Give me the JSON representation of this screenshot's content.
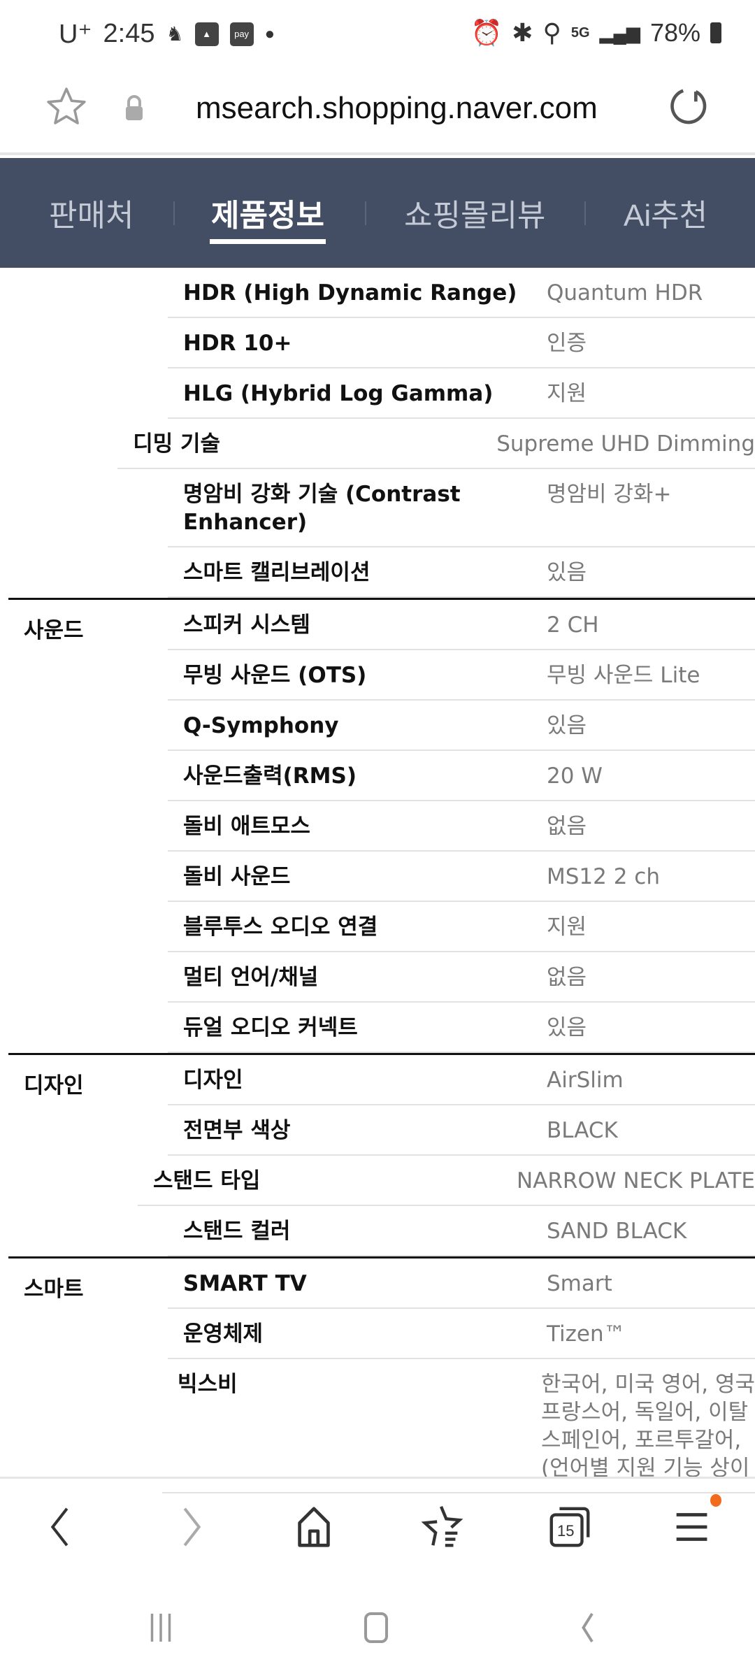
{
  "status_bar": {
    "carrier": "U⁺",
    "time": "2:45",
    "pay_icon_label": "pay",
    "battery": "78%",
    "network": "5G"
  },
  "browser": {
    "url": "msearch.shopping.naver.com"
  },
  "tabs": [
    {
      "label": "판매처"
    },
    {
      "label": "제품정보",
      "active": true
    },
    {
      "label": "쇼핑몰리뷰"
    },
    {
      "label": "Ai추천"
    }
  ],
  "specs": [
    {
      "category": "",
      "rows": [
        {
          "label": "HDR (High Dynamic Range)",
          "value": "Quantum HDR"
        },
        {
          "label": "HDR 10+",
          "value": "인증"
        },
        {
          "label": "HLG (Hybrid Log Gamma)",
          "value": "지원"
        },
        {
          "label": "디밍 기술",
          "value": "Supreme UHD Dimming"
        },
        {
          "label": "명암비 강화 기술 (Contrast Enhancer)",
          "value": "명암비 강화+"
        },
        {
          "label": "스마트 캘리브레이션",
          "value": "있음"
        }
      ]
    },
    {
      "category": "사운드",
      "rows": [
        {
          "label": "스피커 시스템",
          "value": "2 CH"
        },
        {
          "label": "무빙 사운드 (OTS)",
          "value": "무빙 사운드 Lite"
        },
        {
          "label": "Q-Symphony",
          "value": "있음"
        },
        {
          "label": "사운드출력(RMS)",
          "value": "20 W"
        },
        {
          "label": "돌비 애트모스",
          "value": "없음"
        },
        {
          "label": "돌비 사운드",
          "value": "MS12 2 ch"
        },
        {
          "label": "블루투스 오디오 연결",
          "value": "지원"
        },
        {
          "label": "멀티 언어/채널",
          "value": "없음"
        },
        {
          "label": "듀얼 오디오 커넥트",
          "value": "있음"
        }
      ]
    },
    {
      "category": "디자인",
      "rows": [
        {
          "label": "디자인",
          "value": "AirSlim"
        },
        {
          "label": "전면부 색상",
          "value": "BLACK"
        },
        {
          "label": "스탠드 타입",
          "value": "NARROW NECK PLATE"
        },
        {
          "label": "스탠드 컬러",
          "value": "SAND BLACK"
        }
      ]
    },
    {
      "category": "스마트",
      "rows": [
        {
          "label": "SMART TV",
          "value": "Smart"
        },
        {
          "label": "운영체제",
          "value": "Tizen™"
        },
        {
          "label": "빅스비",
          "value": "한국어, 미국 영어, 영국\n프랑스어, 독일어, 이탈\n스페인어, 포르투갈어,\n(언어별 지원 기능 상이"
        }
      ]
    }
  ],
  "bottom_nav": {
    "tab_count": "15",
    "menu_badge_color": "#f26a1b"
  },
  "colors": {
    "tab_bar": "#434d63"
  }
}
